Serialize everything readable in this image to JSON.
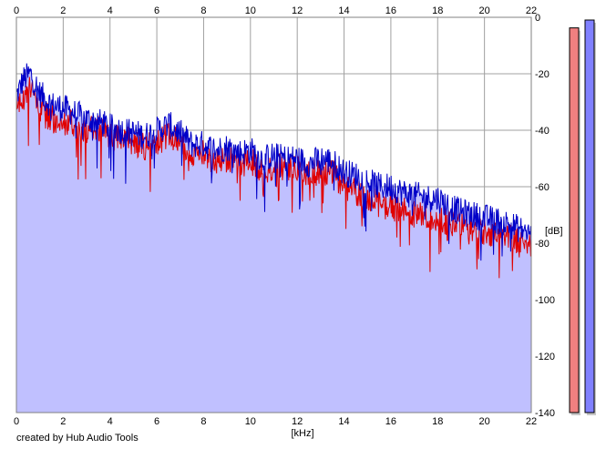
{
  "chart_data": {
    "type": "area",
    "title": "",
    "xlabel": "[kHz]",
    "ylabel": "[dB]",
    "xlim": [
      0,
      22
    ],
    "ylim": [
      -140,
      0
    ],
    "x_ticks": [
      "0",
      "2",
      "4",
      "6",
      "8",
      "10",
      "12",
      "14",
      "16",
      "18",
      "20",
      "22"
    ],
    "y_ticks": [
      "0",
      "-20",
      "-40",
      "-60",
      "-80",
      "-100",
      "-120",
      "-140"
    ],
    "grid": true,
    "fill_color": "#c0c0ff",
    "series": [
      {
        "color": "#0000c8",
        "x": [
          0,
          0.3,
          0.6,
          1,
          1.5,
          2,
          2.5,
          3,
          3.5,
          4,
          4.5,
          5,
          5.5,
          6,
          6.5,
          7,
          7.5,
          8,
          8.5,
          9,
          9.5,
          10,
          10.5,
          11,
          11.5,
          12,
          12.5,
          13,
          13.5,
          14,
          14.5,
          15,
          15.5,
          16,
          16.5,
          17,
          17.5,
          18,
          18.5,
          19,
          19.5,
          20,
          20.5,
          21,
          21.5,
          22
        ],
        "values": [
          -28,
          -22,
          -20,
          -27,
          -31,
          -32,
          -34,
          -36,
          -37,
          -39,
          -40,
          -41,
          -42,
          -40,
          -38,
          -41,
          -45,
          -45,
          -47,
          -46,
          -48,
          -47,
          -50,
          -49,
          -50,
          -50,
          -52,
          -50,
          -51,
          -55,
          -56,
          -58,
          -60,
          -60,
          -62,
          -63,
          -64,
          -64,
          -67,
          -69,
          -70,
          -71,
          -72,
          -73,
          -75,
          -77
        ]
      },
      {
        "color": "#e00000",
        "x": [
          0,
          0.3,
          0.6,
          1,
          1.5,
          2,
          2.5,
          3,
          3.5,
          4,
          4.5,
          5,
          5.5,
          6,
          6.5,
          7,
          7.5,
          8,
          8.5,
          9,
          9.5,
          10,
          10.5,
          11,
          11.5,
          12,
          12.5,
          13,
          13.5,
          14,
          14.5,
          15,
          15.5,
          16,
          16.5,
          17,
          17.5,
          18,
          18.5,
          19,
          19.5,
          20,
          20.5,
          21,
          21.5,
          22
        ],
        "values": [
          -32,
          -28,
          -25,
          -33,
          -36,
          -37,
          -38,
          -40,
          -40,
          -42,
          -43,
          -44,
          -46,
          -44,
          -42,
          -44,
          -49,
          -48,
          -51,
          -50,
          -52,
          -51,
          -54,
          -53,
          -53,
          -54,
          -56,
          -54,
          -55,
          -60,
          -62,
          -64,
          -66,
          -67,
          -68,
          -70,
          -70,
          -71,
          -73,
          -74,
          -75,
          -76,
          -77,
          -78,
          -79,
          -80
        ]
      }
    ]
  },
  "level_meters": [
    {
      "color": "#f08080",
      "level": 0.98
    },
    {
      "color": "#8080ff",
      "level": 1.0
    }
  ],
  "credit_text": "created by Hub Audio Tools"
}
